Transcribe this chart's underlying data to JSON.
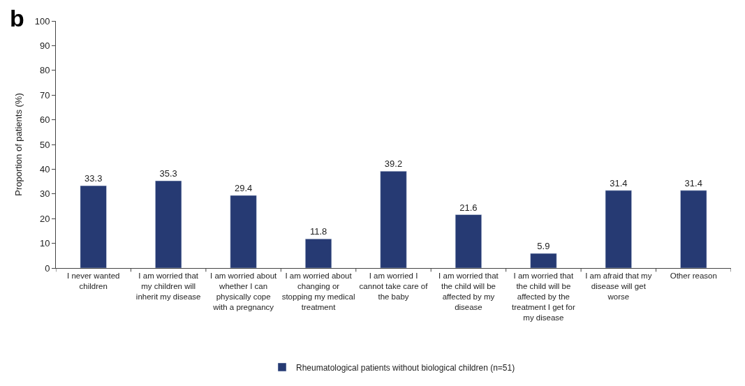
{
  "chart_data": {
    "type": "bar",
    "ylabel": "Proportion of patients (%)",
    "annotations": [
      "b"
    ],
    "categories": [
      "I never wanted children",
      "I am worried that my children will inherit my disease",
      "I am worried about whether I can physically cope with a pregnancy",
      "I am worried about changing or stopping my medical treatment",
      "I am worried I cannot take care of the baby",
      "I am worried that the child will be affected by my disease",
      "I am worried that the child will be affected by the treatment I get for my disease",
      "I am afraid that my disease will get worse",
      "Other reason"
    ],
    "series": [
      {
        "name": "Rheumatological patients without biological children (n=51)",
        "color": "#263a73",
        "values": [
          33.3,
          35.3,
          29.4,
          11.8,
          39.2,
          21.6,
          5.9,
          31.4,
          31.4
        ]
      }
    ],
    "ylim": [
      0,
      100
    ],
    "yticks": [
      0,
      10,
      20,
      30,
      40,
      50,
      60,
      70,
      80,
      90,
      100
    ],
    "data_labels": true,
    "legend": "bottom"
  }
}
